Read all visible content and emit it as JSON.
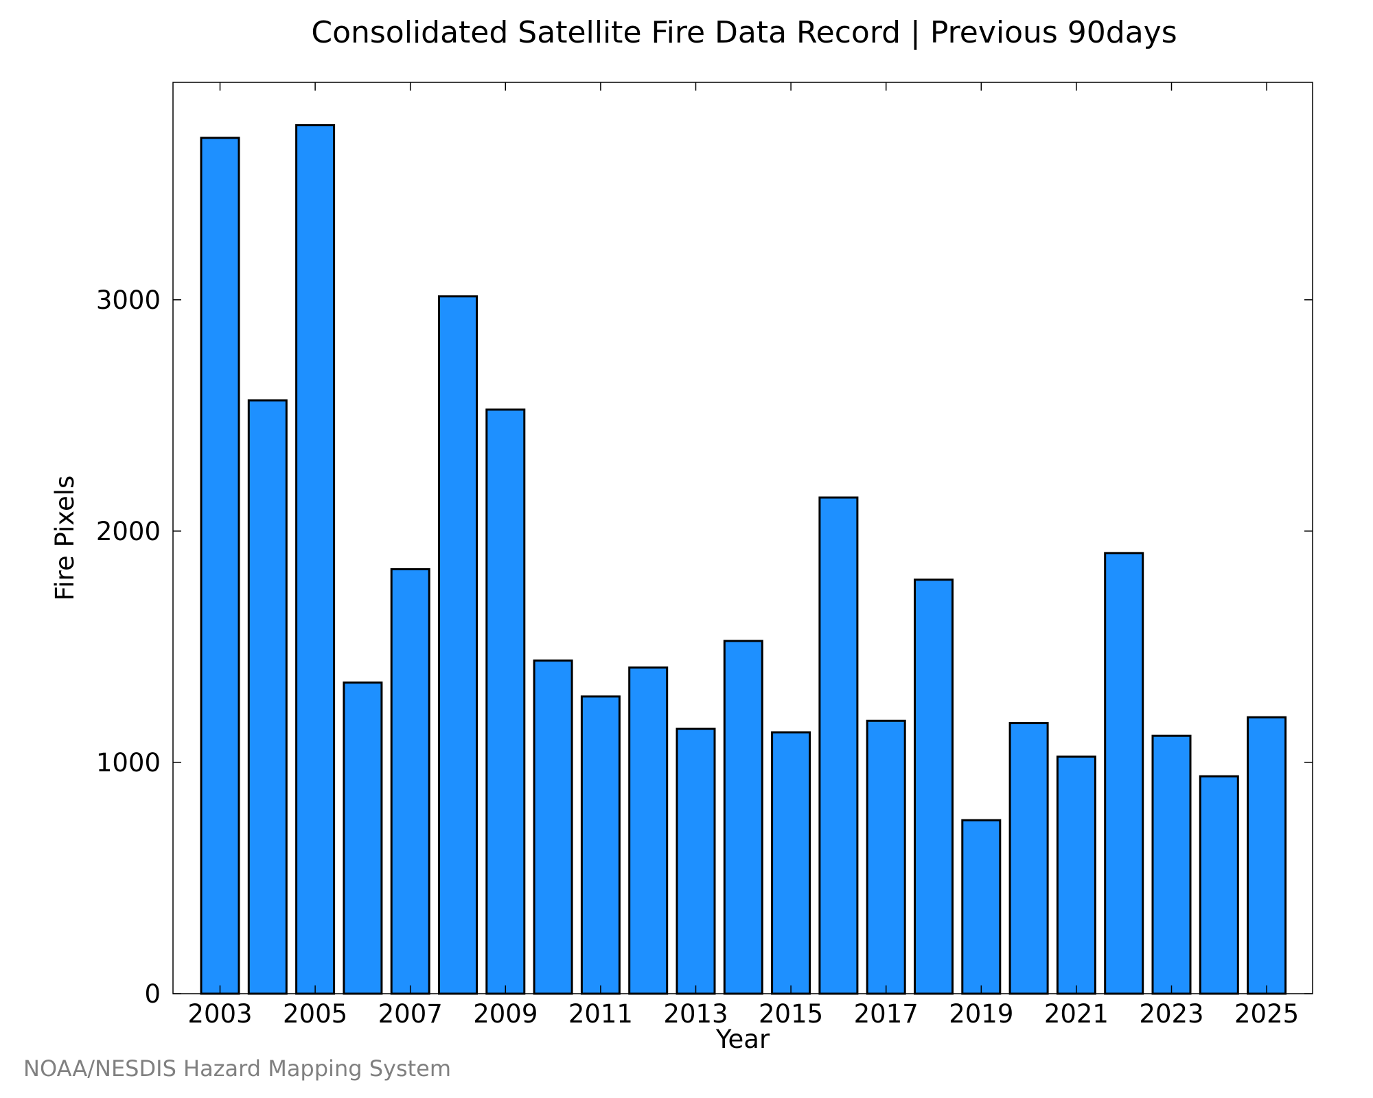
{
  "colors": {
    "bar_fill": "#1e90ff",
    "bar_stroke": "#000000",
    "credit": "#808080"
  },
  "credit": "NOAA/NESDIS Hazard Mapping System",
  "chart_data": {
    "type": "bar",
    "title": "Consolidated Satellite Fire Data Record | Previous 90days",
    "xlabel": "Year",
    "ylabel": "Fire Pixels",
    "categories": [
      "2003",
      "2004",
      "2005",
      "2006",
      "2007",
      "2008",
      "2009",
      "2010",
      "2011",
      "2012",
      "2013",
      "2014",
      "2015",
      "2016",
      "2017",
      "2018",
      "2019",
      "2020",
      "2021",
      "2022",
      "2023",
      "2024",
      "2025"
    ],
    "values": [
      3700,
      2565,
      3755,
      1345,
      1835,
      3015,
      2525,
      1440,
      1285,
      1410,
      1145,
      1525,
      1130,
      2145,
      1180,
      1790,
      750,
      1170,
      1025,
      1905,
      1115,
      940,
      1195
    ],
    "xticks": [
      "2003",
      "2005",
      "2007",
      "2009",
      "2011",
      "2013",
      "2015",
      "2017",
      "2019",
      "2021",
      "2023",
      "2025"
    ],
    "yticks": [
      0,
      1000,
      2000,
      3000
    ],
    "ylim": [
      0,
      3940
    ],
    "grid": false,
    "legend": "none"
  }
}
